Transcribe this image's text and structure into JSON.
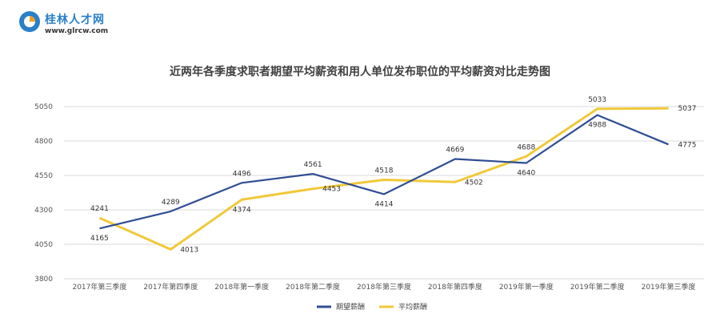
{
  "logo": {
    "name": "桂林人才网",
    "url": "www.glrcw.com"
  },
  "chart_data": {
    "type": "line",
    "title": "近两年各季度求职者期望平均薪资和用人单位发布职位的平均薪资对比走势图",
    "categories": [
      "2017年第三季度",
      "2017年第四季度",
      "2018年第一季度",
      "2018年第二季度",
      "2018年第三季度",
      "2018年第四季度",
      "2019年第一季度",
      "2019年第二季度",
      "2019年第三季度"
    ],
    "series": [
      {
        "name": "期望薪酬",
        "color": "#2f4d93",
        "values": [
          4165,
          4289,
          4496,
          4561,
          4414,
          4669,
          4640,
          4988,
          4775
        ]
      },
      {
        "name": "平均薪酬",
        "color": "#f0c93a",
        "values": [
          4241,
          4013,
          4374,
          4453,
          4518,
          4502,
          4688,
          5033,
          5037
        ]
      }
    ],
    "yticks": [
      3800,
      4050,
      4300,
      4550,
      4800,
      5050
    ],
    "ylim": [
      3800,
      5050
    ],
    "grid": true,
    "legend_position": "bottom"
  }
}
